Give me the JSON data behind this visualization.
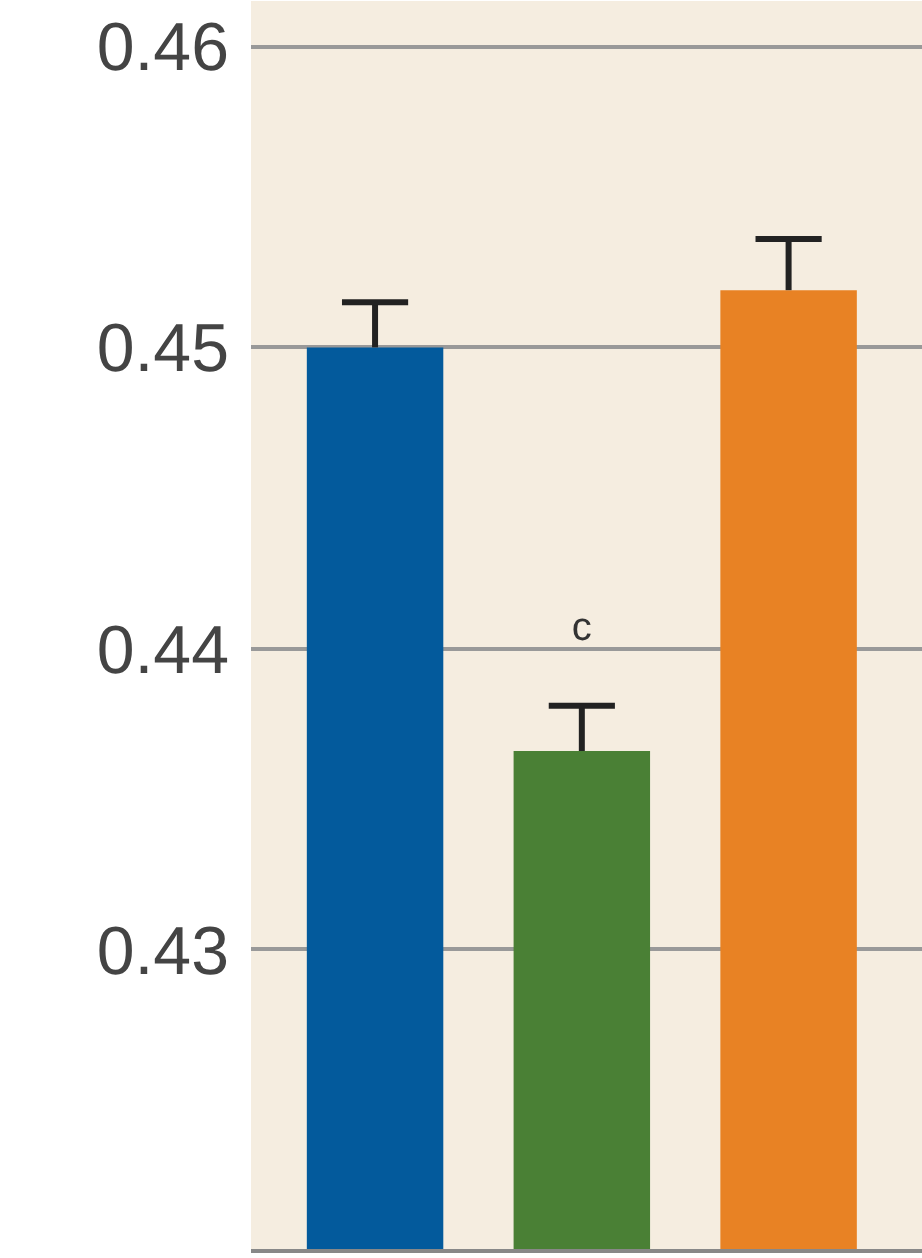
{
  "chart_data": {
    "type": "bar",
    "categories": [
      null,
      null,
      null
    ],
    "values": [
      0.45,
      0.4366,
      0.4519
    ],
    "colors": [
      "#035a9c",
      "#4a8035",
      "#e88224"
    ],
    "errors": [
      [
        0.45,
        0.4515
      ],
      [
        0.4366,
        0.4381
      ],
      [
        0.4519,
        0.4536
      ]
    ],
    "annotations": [
      "c"
    ],
    "ylim": [
      0.42,
      0.4615
    ],
    "yticks": [
      0.43,
      0.44,
      0.45,
      0.46
    ],
    "grid": "y"
  }
}
